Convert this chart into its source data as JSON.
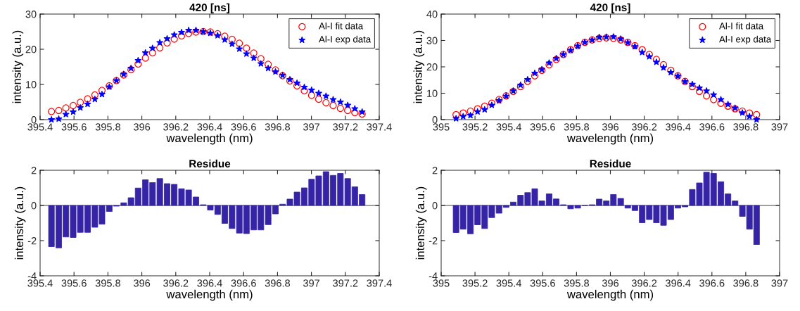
{
  "chart_data": [
    {
      "type": "scatter",
      "title": "420 [ns]",
      "xlabel": "wavelength (nm)",
      "ylabel": "intensity (a.u.)",
      "legend": "top right",
      "grid": false,
      "xlim": [
        395.4,
        397.4
      ],
      "xticks": [
        395.4,
        395.6,
        395.8,
        396,
        396.2,
        396.4,
        396.6,
        396.8,
        397,
        397.2,
        397.4
      ],
      "ylim": [
        0,
        30
      ],
      "yticks": [
        0,
        10,
        20,
        30
      ],
      "x": [
        395.467,
        395.51,
        395.552,
        395.595,
        395.637,
        395.68,
        395.723,
        395.765,
        395.808,
        395.85,
        395.893,
        395.936,
        395.978,
        396.021,
        396.063,
        396.106,
        396.149,
        396.191,
        396.234,
        396.276,
        396.319,
        396.362,
        396.404,
        396.447,
        396.489,
        396.532,
        396.575,
        396.617,
        396.66,
        396.702,
        396.745,
        396.788,
        396.83,
        396.873,
        396.915,
        396.958,
        397.001,
        397.043,
        397.086,
        397.128,
        397.171,
        397.214,
        397.256,
        397.299
      ],
      "series": [
        {
          "name": "Al-I fit data",
          "color": "#ff0000",
          "marker": "circle",
          "values": [
            2.3,
            2.6,
            3.3,
            4.0,
            4.9,
            5.9,
            7.0,
            8.3,
            9.6,
            11.1,
            12.7,
            14.2,
            15.8,
            17.5,
            19.0,
            20.4,
            21.8,
            22.9,
            23.8,
            24.5,
            24.9,
            25.0,
            24.9,
            24.4,
            23.7,
            22.8,
            21.7,
            20.3,
            18.9,
            17.3,
            15.7,
            14.1,
            12.5,
            11.0,
            9.6,
            8.2,
            6.9,
            5.8,
            4.8,
            4.0,
            3.2,
            2.6,
            2.0,
            1.6
          ]
        },
        {
          "name": "Al-I exp data",
          "color": "#0000ff",
          "marker": "star",
          "values": [
            0.0,
            0.2,
            1.5,
            2.2,
            3.4,
            4.4,
            5.8,
            7.2,
            9.3,
            11.1,
            12.9,
            14.6,
            16.8,
            19.0,
            20.3,
            21.9,
            23.0,
            24.1,
            24.8,
            25.4,
            25.4,
            25.0,
            24.6,
            23.9,
            22.7,
            21.5,
            20.1,
            18.7,
            17.5,
            15.9,
            14.6,
            13.6,
            12.6,
            11.4,
            10.4,
            9.2,
            8.4,
            7.5,
            6.7,
            5.7,
            5.0,
            4.1,
            3.1,
            2.2
          ]
        }
      ]
    },
    {
      "type": "scatter",
      "title": "420 [ns]",
      "xlabel": "wavelength (nm)",
      "ylabel": "intensity (a.u.)",
      "legend": "top right",
      "grid": false,
      "xlim": [
        395,
        397
      ],
      "xticks": [
        395,
        395.2,
        395.4,
        395.6,
        395.8,
        396,
        396.2,
        396.4,
        396.6,
        396.8,
        397
      ],
      "ylim": [
        0,
        40
      ],
      "yticks": [
        0,
        10,
        20,
        30,
        40
      ],
      "x": [
        395.088,
        395.13,
        395.173,
        395.215,
        395.257,
        395.299,
        395.342,
        395.384,
        395.426,
        395.469,
        395.511,
        395.553,
        395.595,
        395.638,
        395.68,
        395.722,
        395.765,
        395.807,
        395.849,
        395.892,
        395.934,
        395.976,
        396.018,
        396.061,
        396.103,
        396.145,
        396.188,
        396.23,
        396.272,
        396.314,
        396.357,
        396.399,
        396.441,
        396.484,
        396.526,
        396.568,
        396.61,
        396.653,
        396.695,
        396.737,
        396.78,
        396.822,
        396.864
      ],
      "series": [
        {
          "name": "Al-I fit data",
          "color": "#ff0000",
          "marker": "circle",
          "values": [
            1.9,
            2.5,
            3.2,
            4.1,
            5.1,
            6.2,
            7.6,
            9.0,
            10.7,
            12.5,
            14.5,
            16.6,
            18.7,
            20.8,
            22.8,
            24.7,
            26.5,
            28.0,
            29.3,
            30.2,
            30.8,
            31.0,
            30.8,
            30.2,
            29.3,
            28.0,
            26.5,
            24.7,
            22.8,
            20.8,
            18.7,
            16.6,
            14.5,
            12.5,
            10.7,
            9.0,
            7.6,
            6.2,
            5.1,
            4.1,
            3.2,
            2.5,
            1.9
          ]
        },
        {
          "name": "Al-I exp data",
          "color": "#0000ff",
          "marker": "star",
          "values": [
            0.4,
            1.2,
            1.6,
            3.0,
            3.8,
            5.5,
            7.2,
            8.9,
            10.9,
            13.1,
            15.2,
            17.6,
            19.0,
            21.5,
            23.2,
            24.7,
            26.3,
            27.9,
            29.3,
            30.2,
            31.2,
            31.3,
            31.4,
            30.6,
            29.2,
            27.7,
            25.5,
            23.9,
            21.8,
            19.7,
            17.9,
            16.5,
            14.4,
            13.4,
            12.0,
            10.9,
            9.4,
            7.6,
            5.8,
            4.4,
            2.6,
            1.2,
            0.0
          ]
        }
      ]
    },
    {
      "type": "bar",
      "title": "Residue",
      "xlabel": "wavelength (nm)",
      "ylabel": "intensity (a.u.)",
      "grid": false,
      "color": "#3524a6",
      "xlim": [
        395.4,
        397.4
      ],
      "xticks": [
        395.4,
        395.6,
        395.8,
        396,
        396.2,
        396.4,
        396.6,
        396.8,
        397,
        397.2,
        397.4
      ],
      "ylim": [
        -4,
        2
      ],
      "yticks": [
        -4,
        -2,
        0,
        2
      ],
      "ref_lines": [
        {
          "axis": "y",
          "value": 0,
          "color": "#808080"
        }
      ],
      "x": [
        395.467,
        395.51,
        395.552,
        395.595,
        395.637,
        395.68,
        395.723,
        395.765,
        395.808,
        395.85,
        395.893,
        395.936,
        395.978,
        396.021,
        396.063,
        396.106,
        396.149,
        396.191,
        396.234,
        396.276,
        396.319,
        396.362,
        396.404,
        396.447,
        396.489,
        396.532,
        396.575,
        396.617,
        396.66,
        396.702,
        396.745,
        396.788,
        396.83,
        396.873,
        396.915,
        396.958,
        397.001,
        397.043,
        397.086,
        397.128,
        397.171,
        397.214,
        397.256,
        397.299
      ],
      "values": [
        -2.34,
        -2.41,
        -1.79,
        -1.82,
        -1.53,
        -1.53,
        -1.24,
        -1.06,
        -0.34,
        -0.04,
        0.15,
        0.44,
        0.99,
        1.46,
        1.3,
        1.53,
        1.24,
        1.2,
        0.95,
        0.88,
        0.48,
        0.04,
        -0.26,
        -0.51,
        -1.02,
        -1.31,
        -1.57,
        -1.6,
        -1.39,
        -1.39,
        -1.09,
        -0.48,
        0.07,
        0.36,
        0.76,
        1.0,
        1.49,
        1.68,
        1.92,
        1.71,
        1.82,
        1.53,
        1.06,
        0.62
      ]
    },
    {
      "type": "bar",
      "title": "Residue",
      "xlabel": "wavelength (nm)",
      "ylabel": "intensity (a.u.)",
      "grid": false,
      "color": "#3524a6",
      "xlim": [
        395,
        397
      ],
      "xticks": [
        395,
        395.2,
        395.4,
        395.6,
        395.8,
        396,
        396.2,
        396.4,
        396.6,
        396.8,
        397
      ],
      "ylim": [
        -4,
        2
      ],
      "yticks": [
        -4,
        -2,
        0,
        2
      ],
      "ref_lines": [
        {
          "axis": "y",
          "value": 0,
          "color": "#808080"
        }
      ],
      "x": [
        395.088,
        395.13,
        395.173,
        395.215,
        395.257,
        395.299,
        395.342,
        395.384,
        395.426,
        395.469,
        395.511,
        395.553,
        395.595,
        395.638,
        395.68,
        395.722,
        395.765,
        395.807,
        395.849,
        395.892,
        395.934,
        395.976,
        396.018,
        396.061,
        396.103,
        396.145,
        396.188,
        396.23,
        396.272,
        396.314,
        396.357,
        396.399,
        396.441,
        396.484,
        396.526,
        396.568,
        396.61,
        396.653,
        396.695,
        396.737,
        396.78,
        396.822,
        396.864
      ],
      "values": [
        -1.54,
        -1.35,
        -1.61,
        -1.1,
        -1.31,
        -0.69,
        -0.44,
        -0.11,
        0.19,
        0.58,
        0.73,
        0.95,
        0.26,
        0.66,
        0.37,
        0.04,
        -0.19,
        -0.15,
        0.0,
        0.04,
        0.36,
        0.26,
        0.62,
        0.4,
        -0.15,
        -0.29,
        -0.98,
        -0.8,
        -0.98,
        -1.13,
        -0.8,
        -0.15,
        -0.08,
        0.91,
        1.28,
        1.89,
        1.82,
        1.35,
        0.66,
        0.26,
        -0.62,
        -1.35,
        -2.22
      ]
    }
  ]
}
